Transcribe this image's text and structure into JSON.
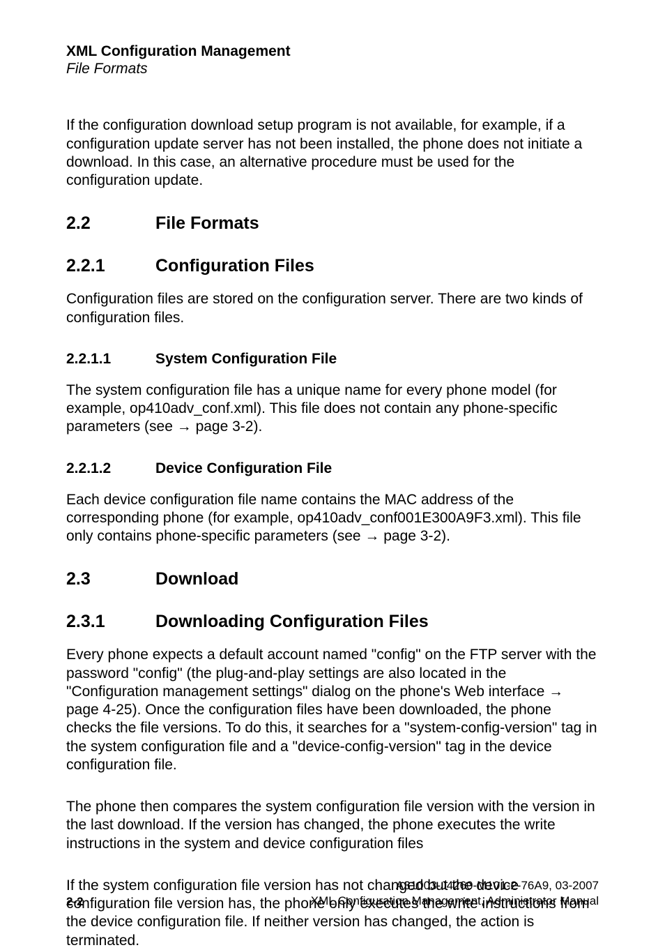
{
  "header": {
    "title": "XML Configuration Management",
    "subtitle": "File Formats"
  },
  "intro": {
    "p1": "If the configuration download setup program is not available, for example, if a configuration update server has not been installed, the phone does not initiate a download. In this case, an alternative procedure must be used for the configuration update."
  },
  "sec22": {
    "num": "2.2",
    "title": "File Formats"
  },
  "sec221": {
    "num": "2.2.1",
    "title": "Configuration Files",
    "p1": "Configuration files are stored on the configuration server. There are two kinds of configuration files."
  },
  "sec2211": {
    "num": "2.2.1.1",
    "title": "System Configuration File",
    "p1": "The system configuration file has a unique name for every phone model (for example, op410adv_conf.xml). This file does not contain any phone-specific parameters (see → page 3-2)."
  },
  "sec2212": {
    "num": "2.2.1.2",
    "title": "Device Configuration File",
    "p1": "Each device configuration file name contains the MAC address of the corresponding phone (for example, op410adv_conf001E300A9F3.xml). This file only contains phone-specific parameters (see → page 3-2)."
  },
  "sec23": {
    "num": "2.3",
    "title": "Download"
  },
  "sec231": {
    "num": "2.3.1",
    "title": "Downloading Configuration Files",
    "p1": "Every phone expects a default account named \"config\" on the FTP server with the password \"config\" (the plug-and-play settings are also located in the \"Configuration management settings\" dialog on the phone's Web interface → page 4-25). Once the configuration files have been downloaded, the phone checks the file versions. To do this, it searches for a \"system-config-version\" tag in the system configuration file and a \"device-config-version\" tag in the device configuration file.",
    "p2": "The phone then compares the system configuration file version with the version in the last download. If the version has changed, the phone executes the write instructions in the system and device configuration files",
    "p3": "If the system configuration file version has not changed but the device configuration file version has, the phone only executes the write instructions from the device configuration file. If neither version has changed, the action is terminated."
  },
  "footer": {
    "page": "2-2",
    "doc_id": "A31003-J4260-M101-2-76A9, 03-2007",
    "doc_title": "XML Configuration Management, Administrator Manual"
  }
}
